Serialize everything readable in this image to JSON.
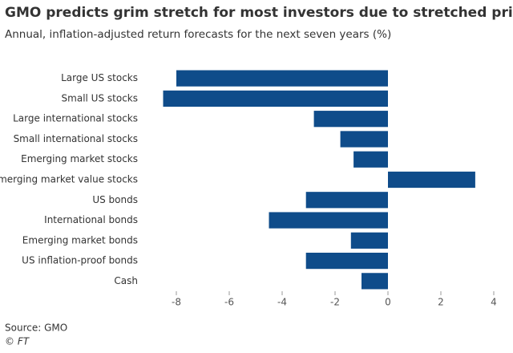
{
  "chart_data": {
    "type": "bar",
    "orientation": "horizontal",
    "title": "GMO predicts grim stretch for most investors due to stretched prices",
    "subtitle": "Annual, inflation-adjusted return forecasts for the next seven years (%)",
    "categories": [
      "Large US stocks",
      "Small US stocks",
      "Large international stocks",
      "Small international stocks",
      "Emerging market stocks",
      "Emerging market value stocks",
      "US bonds",
      "International bonds",
      "Emerging market bonds",
      "US inflation-proof bonds",
      "Cash"
    ],
    "values": [
      -8.0,
      -8.5,
      -2.8,
      -1.8,
      -1.3,
      3.3,
      -3.1,
      -4.5,
      -1.4,
      -3.1,
      -1.0
    ],
    "color": "#0f4c8a",
    "xlim": [
      -9,
      4
    ],
    "xticks": [
      -8,
      -6,
      -4,
      -2,
      0,
      2,
      4
    ],
    "source": "Source: GMO",
    "credit": "© FT"
  }
}
